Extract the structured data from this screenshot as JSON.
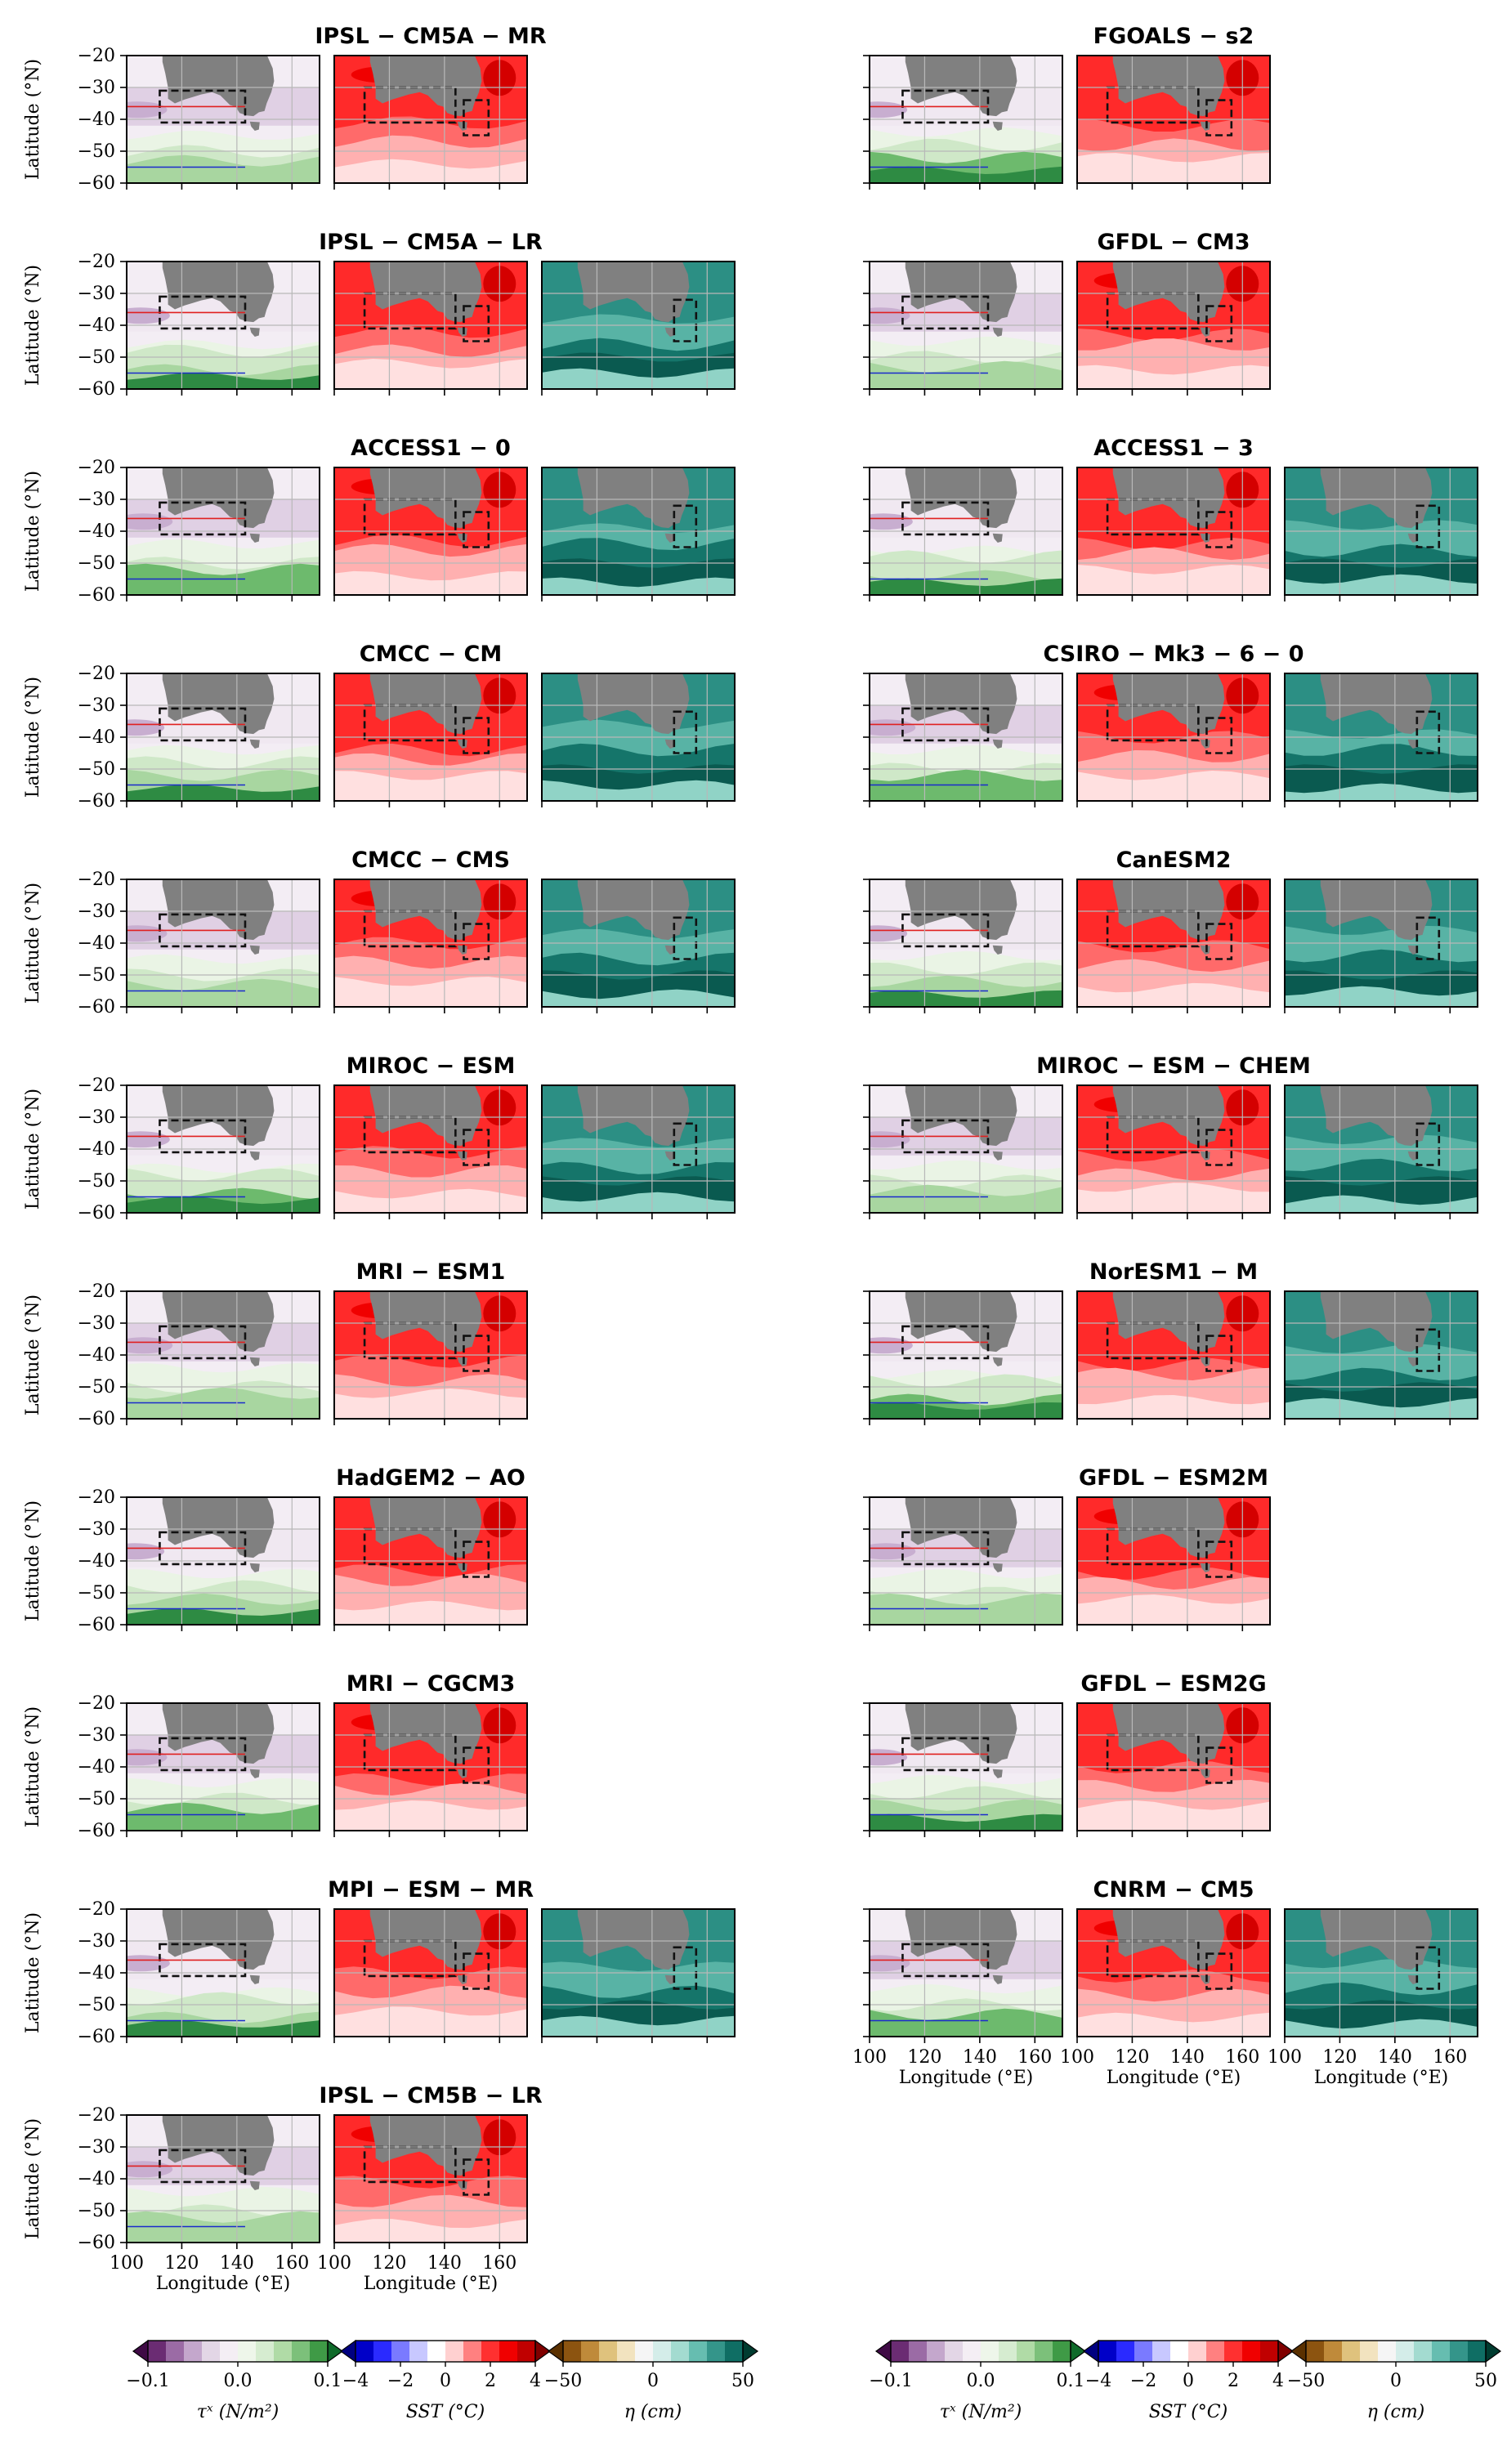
{
  "chart_data": {
    "type": "heatmap",
    "xlabel": "Longitude (°E)",
    "ylabel": "Latitude (°N)",
    "xlim": [
      100,
      170
    ],
    "ylim": [
      -60,
      -20
    ],
    "x_ticks": [
      "100",
      "120",
      "140",
      "160"
    ],
    "y_ticks": [
      "−20",
      "−30",
      "−40",
      "−50",
      "−60"
    ],
    "variables": [
      "tau_x",
      "SST",
      "eta"
    ],
    "columns": [
      {
        "models": [
          {
            "name": "IPSL − CM5A − MR",
            "panels": [
              "tau",
              "sst"
            ]
          },
          {
            "name": "IPSL − CM5A − LR",
            "panels": [
              "tau",
              "sst",
              "eta"
            ]
          },
          {
            "name": "ACCESS1 − 0",
            "panels": [
              "tau",
              "sst",
              "eta"
            ]
          },
          {
            "name": "CMCC − CM",
            "panels": [
              "tau",
              "sst",
              "eta"
            ]
          },
          {
            "name": "CMCC − CMS",
            "panels": [
              "tau",
              "sst",
              "eta"
            ]
          },
          {
            "name": "MIROC − ESM",
            "panels": [
              "tau",
              "sst",
              "eta"
            ]
          },
          {
            "name": "MRI − ESM1",
            "panels": [
              "tau",
              "sst"
            ]
          },
          {
            "name": "HadGEM2 − AO",
            "panels": [
              "tau",
              "sst"
            ]
          },
          {
            "name": "MRI − CGCM3",
            "panels": [
              "tau",
              "sst"
            ]
          },
          {
            "name": "MPI − ESM − MR",
            "panels": [
              "tau",
              "sst",
              "eta"
            ]
          },
          {
            "name": "IPSL − CM5B − LR",
            "panels": [
              "tau",
              "sst"
            ]
          }
        ]
      },
      {
        "models": [
          {
            "name": "FGOALS − s2",
            "panels": [
              "tau",
              "sst"
            ]
          },
          {
            "name": "GFDL − CM3",
            "panels": [
              "tau",
              "sst"
            ]
          },
          {
            "name": "ACCESS1 − 3",
            "panels": [
              "tau",
              "sst",
              "eta"
            ]
          },
          {
            "name": "CSIRO − Mk3 − 6 − 0",
            "panels": [
              "tau",
              "sst",
              "eta"
            ]
          },
          {
            "name": "CanESM2",
            "panels": [
              "tau",
              "sst",
              "eta"
            ]
          },
          {
            "name": "MIROC − ESM − CHEM",
            "panels": [
              "tau",
              "sst",
              "eta"
            ]
          },
          {
            "name": "NorESM1 − M",
            "panels": [
              "tau",
              "sst",
              "eta"
            ]
          },
          {
            "name": "GFDL − ESM2M",
            "panels": [
              "tau",
              "sst"
            ]
          },
          {
            "name": "GFDL − ESM2G",
            "panels": [
              "tau",
              "sst"
            ]
          },
          {
            "name": "CNRM − CM5",
            "panels": [
              "tau",
              "sst",
              "eta"
            ]
          }
        ]
      }
    ],
    "colorbars": [
      {
        "variable": "tau",
        "label": "τˣ (N/m²)",
        "ticks": [
          "−0.1",
          "0.0",
          "0.1"
        ],
        "colors": [
          "#3f0a45",
          "#6b2c73",
          "#9b6ba5",
          "#c4a7cc",
          "#e3d6e6",
          "#f4eef4",
          "#eef6ea",
          "#d6ecd0",
          "#b0dba6",
          "#7cc07a",
          "#3f9a46",
          "#0f6a2a"
        ]
      },
      {
        "variable": "sst",
        "label": "SST (°C)",
        "ticks": [
          "−4",
          "−2",
          "0",
          "2",
          "4"
        ],
        "colors": [
          "#000080",
          "#0000c8",
          "#2a2aff",
          "#7a7aff",
          "#c8c8ff",
          "#ffffff",
          "#ffd0d0",
          "#ff8080",
          "#ff3030",
          "#f00000",
          "#c00000",
          "#800000"
        ]
      },
      {
        "variable": "eta",
        "label": "η (cm)",
        "ticks": [
          "−50",
          "0",
          "50"
        ],
        "colors": [
          "#5a3000",
          "#8c5410",
          "#bf8a3a",
          "#dfc27d",
          "#f2e3bf",
          "#f5f5f5",
          "#d4ede9",
          "#a3dbd0",
          "#66bdb0",
          "#34958a",
          "#0f6e64",
          "#003c30"
        ]
      }
    ]
  }
}
